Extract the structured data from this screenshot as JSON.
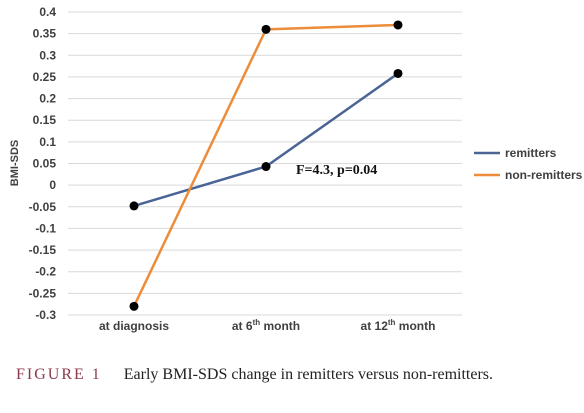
{
  "chart_data": {
    "type": "line",
    "categories": [
      "at diagnosis",
      "at 6th month",
      "at 12th month"
    ],
    "category_parts": [
      {
        "base": "at diagnosis",
        "sup": "",
        "tail": ""
      },
      {
        "base": "at 6",
        "sup": "th",
        "tail": " month"
      },
      {
        "base": "at 12",
        "sup": "th",
        "tail": " month"
      }
    ],
    "series": [
      {
        "name": "remitters",
        "values": [
          -0.048,
          0.043,
          0.258
        ],
        "color": "#4a6496"
      },
      {
        "name": "non-remitters",
        "values": [
          -0.28,
          0.36,
          0.37
        ],
        "color": "#ed8c3a"
      }
    ],
    "ylabel": "BMI-SDS",
    "ylim": [
      -0.3,
      0.4
    ],
    "yticks": [
      "0.4",
      "0.35",
      "0.3",
      "0.25",
      "0.2",
      "0.15",
      "0.1",
      "0.05",
      "0",
      "-0.05",
      "-0.1",
      "-0.15",
      "-0.2",
      "-0.25",
      "-0.3"
    ],
    "grid": true,
    "legend": "right",
    "annotation": "F=4.3, p=0.04"
  },
  "caption": {
    "label": "FIGURE 1",
    "text": "Early BMI-SDS change in remitters versus non-remitters."
  }
}
